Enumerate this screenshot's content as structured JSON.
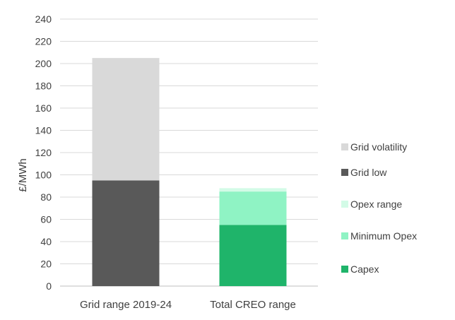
{
  "chart_data": {
    "type": "bar",
    "stacked": true,
    "title": "",
    "xlabel": "",
    "ylabel": "£/MWh",
    "ylim": [
      0,
      240
    ],
    "ytick_step": 20,
    "grid": true,
    "legend_position": "right",
    "categories": [
      "Grid range 2019-24",
      "Total CREO range"
    ],
    "series": [
      {
        "name": "Capex",
        "color": "#1fb46a",
        "values": [
          0,
          55
        ]
      },
      {
        "name": "Minimum Opex",
        "color": "#8ff3c4",
        "values": [
          0,
          30
        ]
      },
      {
        "name": "Opex range",
        "color": "#d3fbe7",
        "values": [
          0,
          3
        ]
      },
      {
        "name": "Grid low",
        "color": "#595959",
        "values": [
          95,
          0
        ]
      },
      {
        "name": "Grid volatility",
        "color": "#d9d9d9",
        "values": [
          110,
          0
        ]
      }
    ],
    "legend_order": [
      "Grid volatility",
      "Grid low",
      "Opex range",
      "Minimum Opex",
      "Capex"
    ]
  }
}
